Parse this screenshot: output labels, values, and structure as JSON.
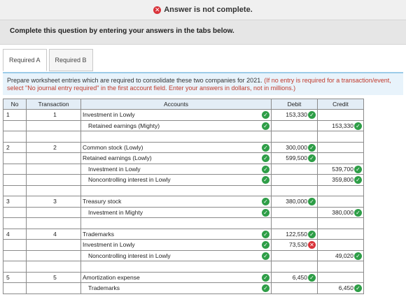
{
  "banner": {
    "text": "Answer is not complete."
  },
  "instruction": "Complete this question by entering your answers in the tabs below.",
  "tabs": [
    {
      "label": "Required A"
    },
    {
      "label": "Required B"
    }
  ],
  "prompt": {
    "main": "Prepare worksheet entries which are required to consolidate these two companies for 2021.",
    "note": "(If no entry is required for a transaction/event, select \"No journal entry required\" in the first account field. Enter your answers in dollars, not in millions.)"
  },
  "table": {
    "headers": {
      "no": "No",
      "transaction": "Transaction",
      "accounts": "Accounts",
      "debit": "Debit",
      "credit": "Credit"
    },
    "rows": [
      {
        "no": "1",
        "transaction": "1",
        "account": "Investment in Lowly",
        "debit": "153,330",
        "credit": ""
      },
      {
        "no": "",
        "transaction": "",
        "account": "Retained earnings (Mighty)",
        "debit": "",
        "credit": "153,330"
      },
      {
        "no": "",
        "transaction": "",
        "account": "",
        "debit": "",
        "credit": ""
      },
      {
        "no": "2",
        "transaction": "2",
        "account": "Common stock (Lowly)",
        "debit": "300,000",
        "credit": ""
      },
      {
        "no": "",
        "transaction": "",
        "account": "Retained earnings (Lowly)",
        "debit": "599,500",
        "credit": ""
      },
      {
        "no": "",
        "transaction": "",
        "account": "Investment in Lowly",
        "debit": "",
        "credit": "539,700"
      },
      {
        "no": "",
        "transaction": "",
        "account": "Noncontrolling interest in Lowly",
        "debit": "",
        "credit": "359,800"
      },
      {
        "no": "",
        "transaction": "",
        "account": "",
        "debit": "",
        "credit": ""
      },
      {
        "no": "3",
        "transaction": "3",
        "account": "Treasury stock",
        "debit": "380,000",
        "credit": ""
      },
      {
        "no": "",
        "transaction": "",
        "account": "Investment in Mighty",
        "debit": "",
        "credit": "380,000"
      },
      {
        "no": "",
        "transaction": "",
        "account": "",
        "debit": "",
        "credit": ""
      },
      {
        "no": "4",
        "transaction": "4",
        "account": "Trademarks",
        "debit": "122,550",
        "credit": ""
      },
      {
        "no": "",
        "transaction": "",
        "account": "Investment in Lowly",
        "debit": "73,530",
        "credit": ""
      },
      {
        "no": "",
        "transaction": "",
        "account": "Noncontrolling interest in Lowly",
        "debit": "",
        "credit": "49,020"
      },
      {
        "no": "",
        "transaction": "",
        "account": "",
        "debit": "",
        "credit": ""
      },
      {
        "no": "5",
        "transaction": "5",
        "account": "Amortization expense",
        "debit": "6,450",
        "credit": ""
      },
      {
        "no": "",
        "transaction": "",
        "account": "Trademarks",
        "debit": "",
        "credit": "6,450"
      }
    ]
  },
  "colors": {
    "correct": "#2e9e47",
    "incorrect": "#d9333a",
    "header_bg": "#e3edf6",
    "prompt_bg": "#e8f3fb"
  }
}
